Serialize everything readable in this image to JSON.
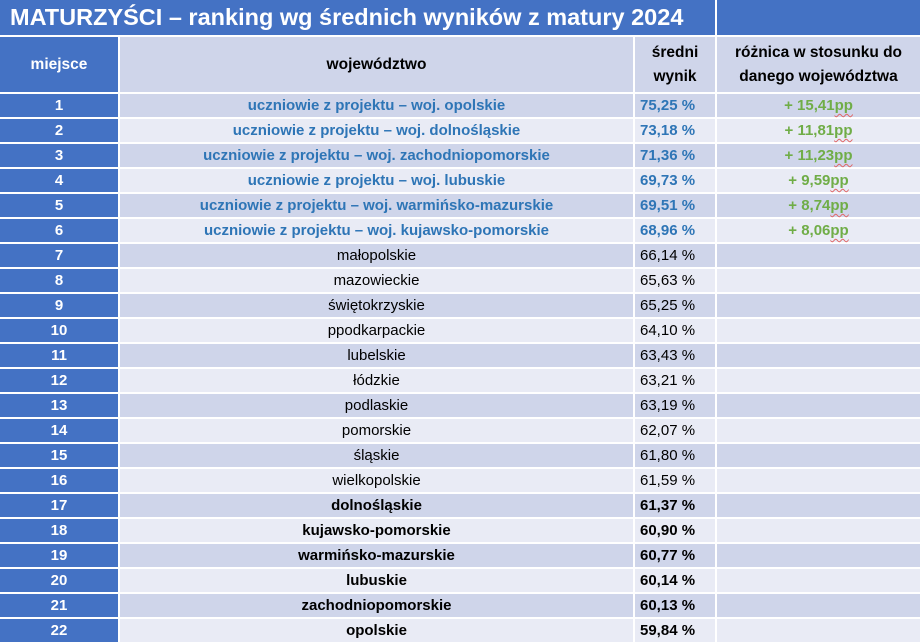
{
  "title": "MATURZYŚCI – ranking wg średnich wyników z matury 2024",
  "headers": {
    "rank": "miejsce",
    "region": "województwo",
    "score_line1": "średni",
    "score_line2": "wynik",
    "diff_line1": "różnica w stosunku do",
    "diff_line2": "danego województwa"
  },
  "rows": [
    {
      "rank": "1",
      "region": "uczniowie z projektu – woj. opolskie",
      "score": "75,25 %",
      "diff": "+ 15,41",
      "unit": "pp",
      "project": true
    },
    {
      "rank": "2",
      "region": "uczniowie z projektu – woj. dolnośląskie",
      "score": "73,18 %",
      "diff": "+ 11,81",
      "unit": "pp",
      "project": true
    },
    {
      "rank": "3",
      "region": "uczniowie z projektu – woj. zachodniopomorskie",
      "score": "71,36 %",
      "diff": "+ 11,23",
      "unit": "pp",
      "project": true
    },
    {
      "rank": "4",
      "region": "uczniowie z projektu – woj. lubuskie",
      "score": "69,73 %",
      "diff": "+ 9,59",
      "unit": "pp",
      "project": true
    },
    {
      "rank": "5",
      "region": "uczniowie z projektu – woj. warmińsko-mazurskie",
      "score": "69,51 %",
      "diff": "+ 8,74",
      "unit": "pp",
      "project": true
    },
    {
      "rank": "6",
      "region": "uczniowie z projektu – woj. kujawsko-pomorskie",
      "score": "68,96 %",
      "diff": "+ 8,06",
      "unit": "pp",
      "project": true
    },
    {
      "rank": "7",
      "region": "małopolskie",
      "score": "66,14 %",
      "diff": "",
      "unit": "",
      "project": false
    },
    {
      "rank": "8",
      "region": "mazowieckie",
      "score": "65,63 %",
      "diff": "",
      "unit": "",
      "project": false
    },
    {
      "rank": "9",
      "region": "świętokrzyskie",
      "score": "65,25 %",
      "diff": "",
      "unit": "",
      "project": false
    },
    {
      "rank": "10",
      "region": "ppodkarpackie",
      "score": "64,10 %",
      "diff": "",
      "unit": "",
      "project": false
    },
    {
      "rank": "11",
      "region": "lubelskie",
      "score": "63,43 %",
      "diff": "",
      "unit": "",
      "project": false
    },
    {
      "rank": "12",
      "region": "łódzkie",
      "score": "63,21 %",
      "diff": "",
      "unit": "",
      "project": false
    },
    {
      "rank": "13",
      "region": "podlaskie",
      "score": "63,19 %",
      "diff": "",
      "unit": "",
      "project": false
    },
    {
      "rank": "14",
      "region": "pomorskie",
      "score": "62,07 %",
      "diff": "",
      "unit": "",
      "project": false
    },
    {
      "rank": "15",
      "region": "śląskie",
      "score": "61,80 %",
      "diff": "",
      "unit": "",
      "project": false
    },
    {
      "rank": "16",
      "region": "wielkopolskie",
      "score": "61,59 %",
      "diff": "",
      "unit": "",
      "project": false
    },
    {
      "rank": "17",
      "region": "dolnośląskie",
      "score": "61,37 %",
      "diff": "",
      "unit": "",
      "project": false,
      "bold": true
    },
    {
      "rank": "18",
      "region": "kujawsko-pomorskie",
      "score": "60,90 %",
      "diff": "",
      "unit": "",
      "project": false,
      "bold": true
    },
    {
      "rank": "19",
      "region": "warmińsko-mazurskie",
      "score": "60,77 %",
      "diff": "",
      "unit": "",
      "project": false,
      "bold": true
    },
    {
      "rank": "20",
      "region": "lubuskie",
      "score": "60,14 %",
      "diff": "",
      "unit": "",
      "project": false,
      "bold": true
    },
    {
      "rank": "21",
      "region": "zachodniopomorskie",
      "score": "60,13 %",
      "diff": "",
      "unit": "",
      "project": false,
      "bold": true
    },
    {
      "rank": "22",
      "region": "opolskie",
      "score": "59,84 %",
      "diff": "",
      "unit": "",
      "project": false,
      "bold": true
    }
  ],
  "colors": {
    "header_blue": "#4472c4",
    "band_dark": "#cfd5ea",
    "band_light": "#e9ebf5",
    "project_text": "#2e75b6",
    "diff_green": "#70ad47"
  }
}
